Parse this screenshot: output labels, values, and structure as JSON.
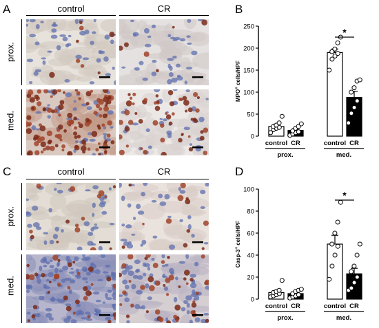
{
  "panels": {
    "A": {
      "letter": "A",
      "columns": [
        "control",
        "CR"
      ],
      "rows": [
        "prox.",
        "med."
      ]
    },
    "C": {
      "letter": "C",
      "columns": [
        "control",
        "CR"
      ],
      "rows": [
        "prox.",
        "med."
      ]
    },
    "B": {
      "letter": "B"
    },
    "D": {
      "letter": "D"
    }
  },
  "colors": {
    "hematoxylin": "#6f7fb8",
    "dab": "#8a2f1c",
    "background": "#e9e4df",
    "control_bar": "#ffffff",
    "cr_bar": "#000000"
  },
  "chart_data": [
    {
      "type": "bar",
      "panel": "B",
      "ylabel": "MPO+ cells/HPF",
      "ylabel_main": "MPO",
      "ylabel_sup": "+",
      "ylabel_rest": " cells/HPF",
      "ylim": [
        0,
        250
      ],
      "yticks": [
        0,
        50,
        100,
        150,
        200,
        250
      ],
      "groups": [
        {
          "label": "prox.",
          "categories": [
            "control",
            "CR"
          ]
        },
        {
          "label": "med.",
          "categories": [
            "control",
            "CR"
          ]
        }
      ],
      "bars": [
        {
          "group": "prox.",
          "category": "control",
          "mean": 22,
          "sem": 5,
          "fill": "white",
          "points": [
            8,
            15,
            18,
            20,
            22,
            25,
            30,
            45
          ]
        },
        {
          "group": "prox.",
          "category": "CR",
          "mean": 13,
          "sem": 4,
          "fill": "black",
          "points": [
            2,
            5,
            8,
            10,
            12,
            18,
            22,
            28
          ]
        },
        {
          "group": "med.",
          "category": "control",
          "mean": 190,
          "sem": 8,
          "fill": "white",
          "points": [
            150,
            175,
            182,
            188,
            192,
            198,
            212,
            225
          ]
        },
        {
          "group": "med.",
          "category": "CR",
          "mean": 88,
          "sem": 14,
          "fill": "black",
          "points": [
            30,
            52,
            65,
            80,
            100,
            110,
            125,
            128
          ]
        }
      ],
      "significance": {
        "symbol": "*",
        "between": [
          "med. control",
          "med. CR"
        ]
      }
    },
    {
      "type": "bar",
      "panel": "D",
      "ylabel": "Casp-3+ cells/HPF",
      "ylabel_main": "Casp-3",
      "ylabel_sup": "+",
      "ylabel_rest": " cells/HPF",
      "ylim": [
        0,
        100
      ],
      "yticks": [
        0,
        20,
        40,
        60,
        80,
        100
      ],
      "groups": [
        {
          "label": "prox.",
          "categories": [
            "control",
            "CR"
          ]
        },
        {
          "label": "med.",
          "categories": [
            "control",
            "CR"
          ]
        }
      ],
      "bars": [
        {
          "group": "prox.",
          "category": "control",
          "mean": 6,
          "sem": 1.5,
          "fill": "white",
          "points": [
            2,
            3,
            4,
            5,
            6,
            7,
            8,
            17
          ]
        },
        {
          "group": "prox.",
          "category": "CR",
          "mean": 5,
          "sem": 1.2,
          "fill": "black",
          "points": [
            1,
            2,
            3,
            4,
            5,
            7,
            8,
            9
          ]
        },
        {
          "group": "med.",
          "category": "control",
          "mean": 50,
          "sem": 8,
          "fill": "white",
          "points": [
            18,
            30,
            40,
            48,
            50,
            60,
            70,
            88
          ]
        },
        {
          "group": "med.",
          "category": "CR",
          "mean": 23,
          "sem": 5,
          "fill": "black",
          "points": [
            8,
            10,
            15,
            20,
            25,
            30,
            40,
            50
          ]
        }
      ],
      "significance": {
        "symbol": "*",
        "between": [
          "med. control",
          "med. CR"
        ]
      }
    }
  ]
}
